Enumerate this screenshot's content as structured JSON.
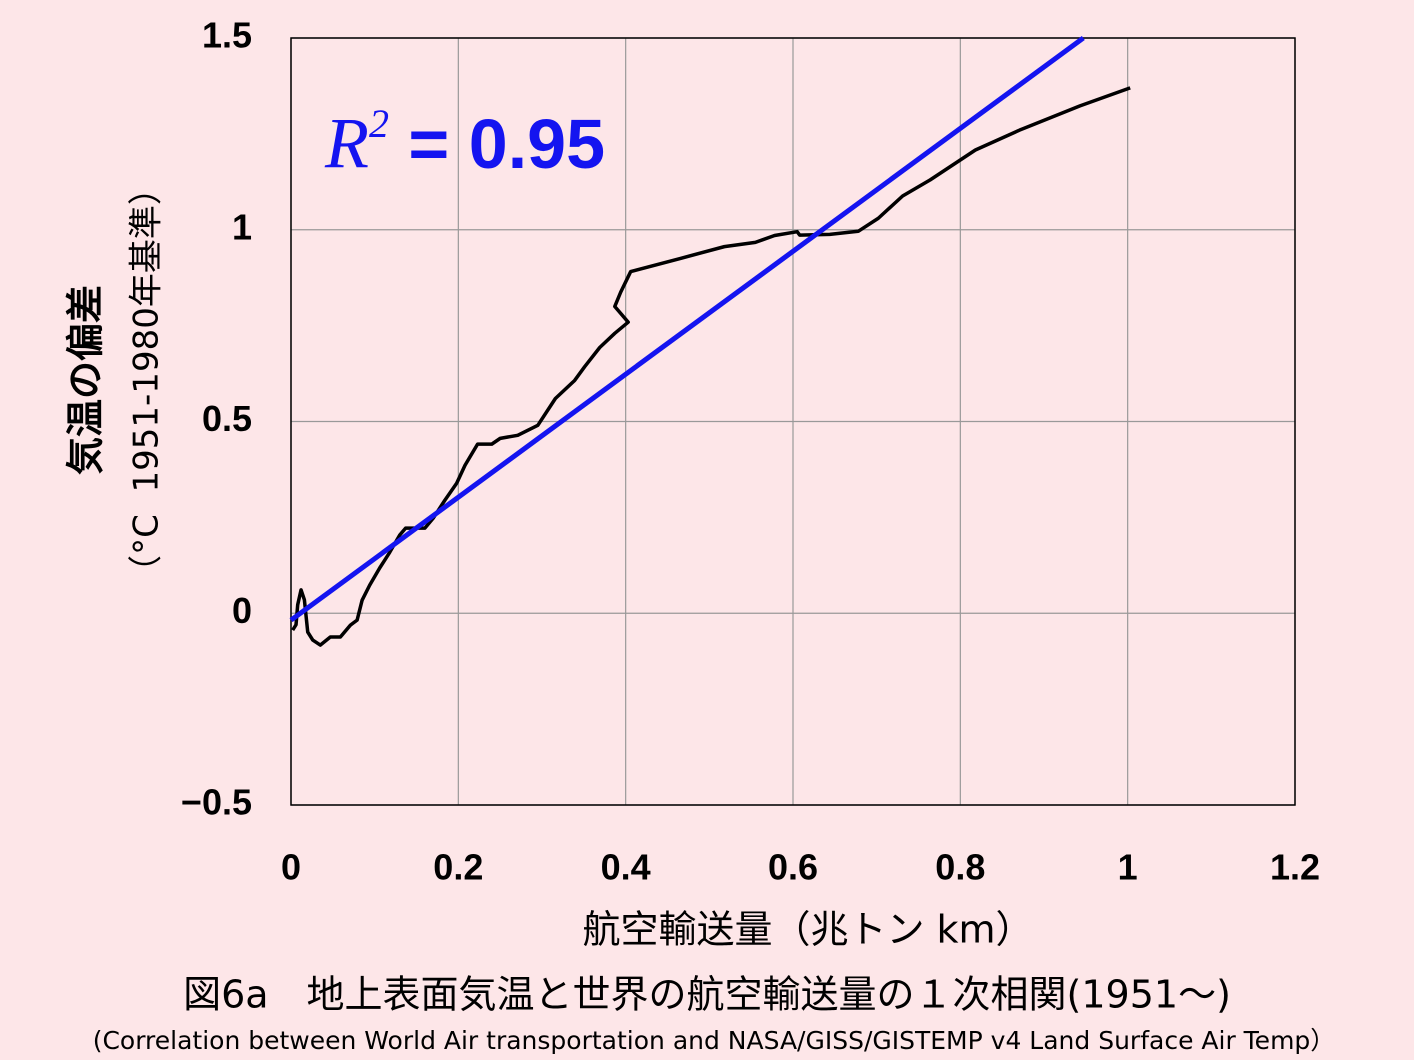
{
  "chart_data": {
    "type": "line",
    "x_label": "航空輸送量（兆トン km）",
    "y_label_lines": [
      "気温の偏差",
      "（°C  1951-1980年基準）"
    ],
    "caption": "図6a　地上表面気温と世界の航空輸送量の１次相関(1951〜)",
    "subcaption": "(Correlation between World Air transportation and NASA/GISS/GISTEMP v4 Land Surface Air Temp）",
    "annotation": {
      "base": "R",
      "superscript": "2",
      "rest": " = 0.95"
    },
    "xlim": [
      0,
      1.2
    ],
    "xticks": [
      0,
      0.2,
      0.4,
      0.6,
      0.8,
      1,
      1.2
    ],
    "ylim": [
      -0.5,
      1.5
    ],
    "yticks": [
      {
        "value": -0.5,
        "label": "−0.5"
      },
      0,
      0.5,
      1,
      1.5
    ],
    "grid": true,
    "series": [
      {
        "color": "#000000",
        "x": [
          0.002,
          0.006,
          0.008,
          0.012,
          0.016,
          0.02,
          0.026,
          0.035,
          0.047,
          0.059,
          0.071,
          0.079,
          0.085,
          0.094,
          0.106,
          0.118,
          0.13,
          0.137,
          0.16,
          0.17,
          0.184,
          0.198,
          0.208,
          0.223,
          0.24,
          0.25,
          0.271,
          0.295,
          0.316,
          0.339,
          0.351,
          0.369,
          0.387,
          0.403,
          0.387,
          0.394,
          0.406,
          0.465,
          0.518,
          0.555,
          0.578,
          0.605,
          0.608,
          0.644,
          0.678,
          0.702,
          0.731,
          0.764,
          0.818,
          0.871,
          0.943,
          1.003
        ],
        "values": [
          -0.044,
          -0.03,
          0.022,
          0.061,
          0.035,
          -0.049,
          -0.07,
          -0.083,
          -0.062,
          -0.062,
          -0.031,
          -0.018,
          0.034,
          0.073,
          0.118,
          0.159,
          0.204,
          0.222,
          0.222,
          0.248,
          0.295,
          0.339,
          0.386,
          0.441,
          0.441,
          0.456,
          0.464,
          0.49,
          0.56,
          0.607,
          0.643,
          0.693,
          0.73,
          0.759,
          0.8,
          0.837,
          0.891,
          0.925,
          0.956,
          0.967,
          0.985,
          0.995,
          0.986,
          0.988,
          0.996,
          1.03,
          1.088,
          1.13,
          1.208,
          1.26,
          1.323,
          1.37
        ]
      },
      {
        "color": "#1414f0",
        "x": [
          0,
          0.947
        ],
        "values": [
          -0.018,
          1.5
        ]
      }
    ]
  }
}
